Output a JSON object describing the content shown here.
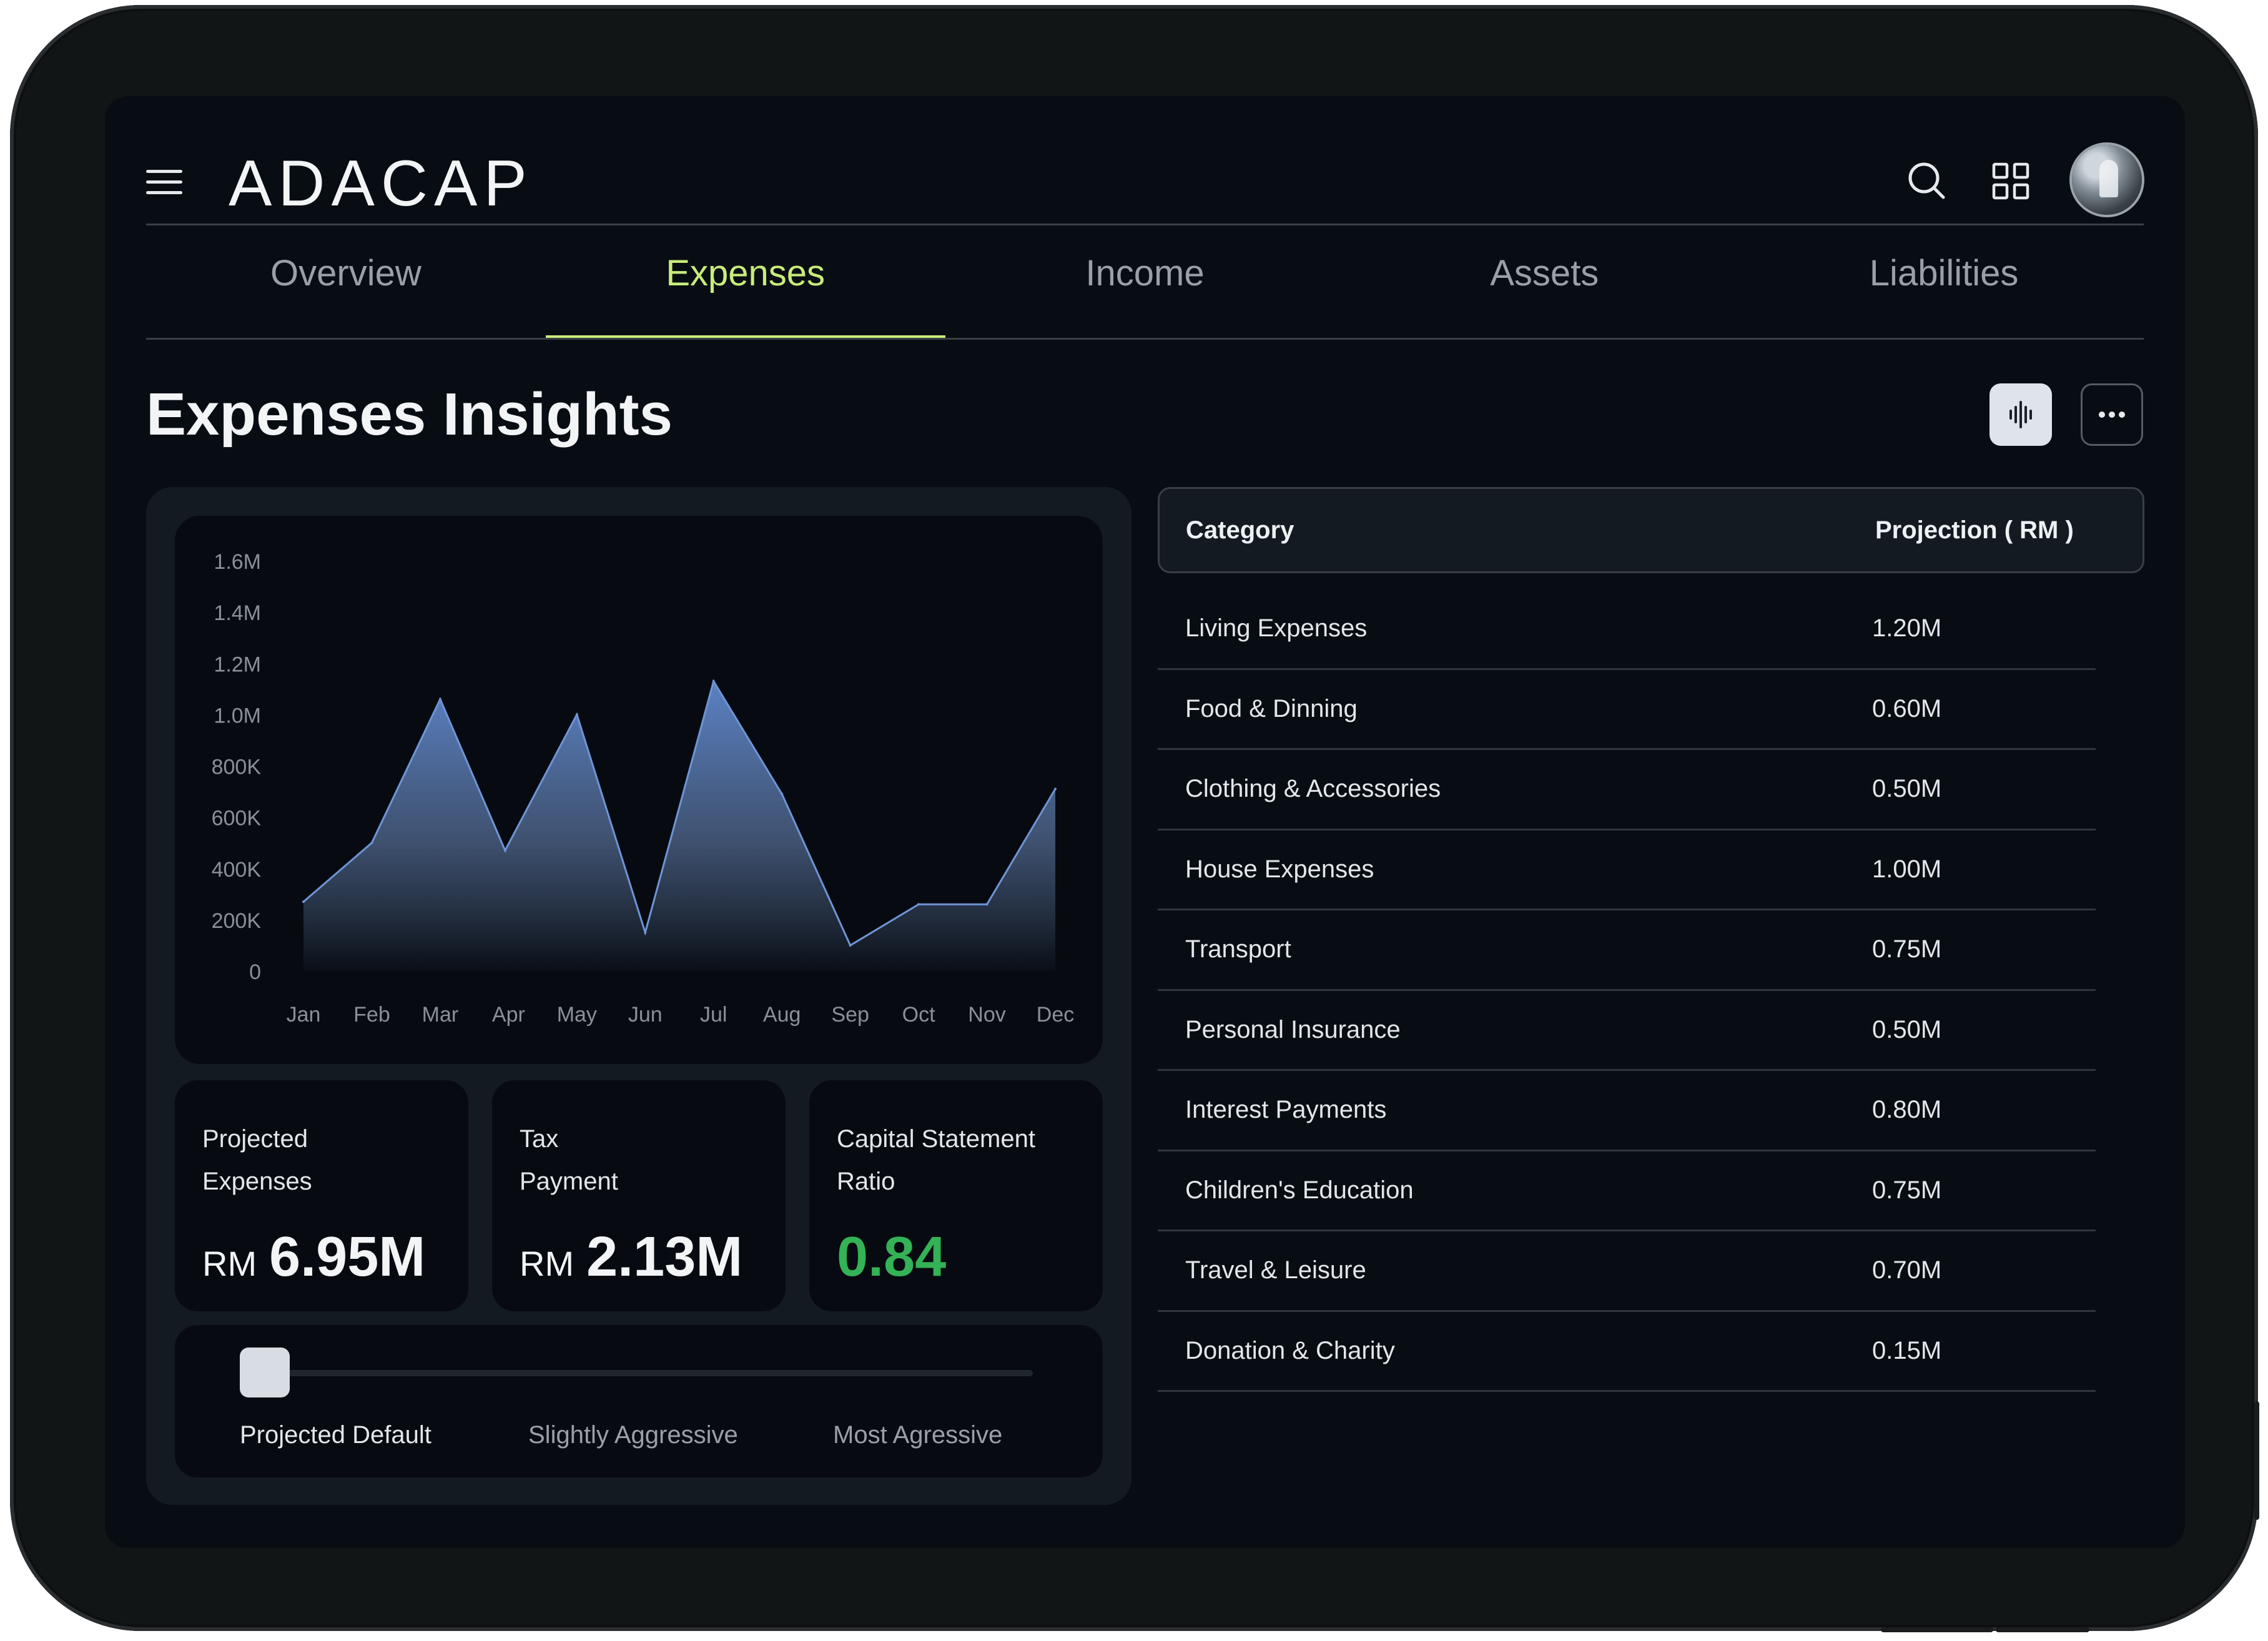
{
  "app": {
    "logo": "ADACAP"
  },
  "header": {
    "menu_icon": "hamburger-menu-icon",
    "search_icon": "search-icon",
    "grid_icon": "app-grid-icon",
    "avatar": "user-avatar"
  },
  "tabs": [
    {
      "label": "Overview",
      "active": false
    },
    {
      "label": "Expenses",
      "active": true
    },
    {
      "label": "Income",
      "active": false
    },
    {
      "label": "Assets",
      "active": false
    },
    {
      "label": "Liabilities",
      "active": false
    }
  ],
  "page": {
    "title": "Expenses Insights",
    "wave_icon": "audio-wave-icon",
    "more_icon": "more-dots-icon"
  },
  "colors": {
    "accent": "#c8ec7a",
    "area_top": "#5b82c4",
    "positive": "#34b256",
    "background": "#080d14",
    "panel": "#131a22"
  },
  "chart_data": {
    "type": "area",
    "title": "",
    "xlabel": "",
    "ylabel": "",
    "categories": [
      "Jan",
      "Feb",
      "Mar",
      "Apr",
      "May",
      "Jun",
      "Jul",
      "Aug",
      "Sep",
      "Oct",
      "Nov",
      "Dec"
    ],
    "x_points": [
      0,
      1,
      2,
      2.95,
      4,
      5,
      6,
      7,
      8,
      9,
      10,
      11
    ],
    "values": [
      270000,
      500000,
      1060000,
      470000,
      1000000,
      150000,
      1130000,
      690000,
      100000,
      260000,
      260000,
      710000
    ],
    "y_ticks": [
      "0",
      "200K",
      "400K",
      "600K",
      "800K",
      "1.0M",
      "1.2M",
      "1.4M",
      "1.6M"
    ],
    "y_tick_values": [
      0,
      200000,
      400000,
      600000,
      800000,
      1000000,
      1200000,
      1400000,
      1600000
    ],
    "ylim": [
      0,
      1600000
    ],
    "grid": false,
    "legend": "none"
  },
  "stats": {
    "projected": {
      "label": "Projected\nExpenses",
      "currency": "RM",
      "value": "6.95M"
    },
    "tax": {
      "label": "Tax\nPayment",
      "currency": "RM",
      "value": "2.13M"
    },
    "ratio": {
      "label": "Capital Statement\nRatio",
      "value": "0.84"
    }
  },
  "scenario_slider": {
    "options": [
      "Projected Default",
      "Slightly Aggressive",
      "Most Agressive"
    ],
    "selected_index": 0,
    "position_fraction": 0
  },
  "table": {
    "headers": [
      "Category",
      "Projection ( RM )"
    ],
    "rows": [
      {
        "category": "Living Expenses",
        "projection": "1.20M"
      },
      {
        "category": "Food & Dinning",
        "projection": "0.60M"
      },
      {
        "category": "Clothing & Accessories",
        "projection": "0.50M"
      },
      {
        "category": "House Expenses",
        "projection": "1.00M"
      },
      {
        "category": "Transport",
        "projection": "0.75M"
      },
      {
        "category": "Personal Insurance",
        "projection": "0.50M"
      },
      {
        "category": "Interest Payments",
        "projection": "0.80M"
      },
      {
        "category": "Children's Education",
        "projection": "0.75M"
      },
      {
        "category": "Travel & Leisure",
        "projection": "0.70M"
      },
      {
        "category": "Donation & Charity",
        "projection": "0.15M"
      }
    ]
  }
}
